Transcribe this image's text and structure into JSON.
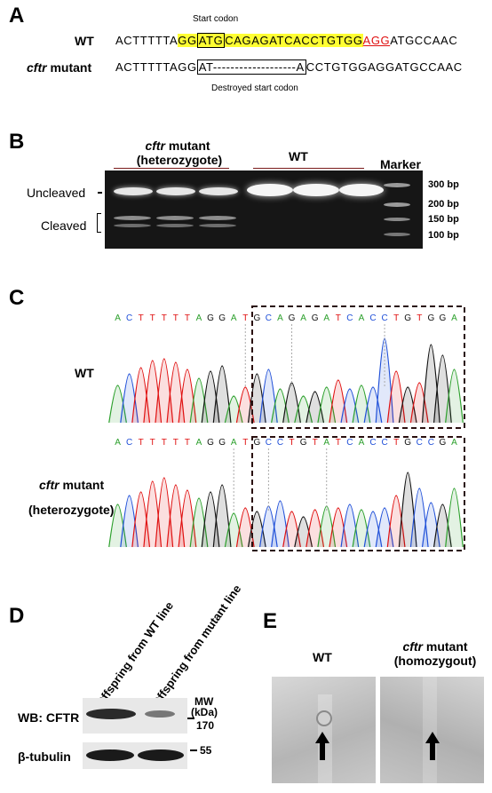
{
  "panels": {
    "A": "A",
    "B": "B",
    "C": "C",
    "D": "D",
    "E": "E"
  },
  "panelA": {
    "start_codon_label": "Start codon",
    "destroyed_label": "Destroyed start codon",
    "wt_label": "WT",
    "mutant_label_italic": "cftr",
    "mutant_label_rest": " mutant",
    "wt_seq": {
      "pre": "ACTTTTTA",
      "hl1": "GG",
      "box": "ATG",
      "hl2": "CAGAGATCACCTGTGG",
      "red": "AGG",
      "post": "ATGCCAAC"
    },
    "mut_seq": {
      "pre": "ACTTTTTAGG",
      "box": "AT-------------------A",
      "post": "CCTGTGGAGGATGCCAAC"
    }
  },
  "panelB": {
    "group1_italic": "cftr",
    "group1_rest": " mutant",
    "group1_sub": "(heterozygote)",
    "group2": "WT",
    "marker": "Marker",
    "uncleaved": "Uncleaved",
    "cleaved": "Cleaved",
    "sizes": [
      "300 bp",
      "200 bp",
      "150 bp",
      "100 bp"
    ]
  },
  "panelC": {
    "wt_label": "WT",
    "mut_label_italic": "cftr",
    "mut_label_rest": " mutant",
    "mut_label_sub": "(heterozygote)",
    "wt_bases": "ACTTTTTAGGATGCAGAGATCACCTGTGGA",
    "mut_bases": "ACTTTTTAGGATGCCTGTATCACCTGCCGA"
  },
  "panelD": {
    "lane1": "Offspring from WT line",
    "lane2": "Offspring from mutant line",
    "mw": "MW",
    "kda": "(kDa)",
    "row1": "WB: CFTR",
    "row2": "β-tubulin",
    "mw1": "170",
    "mw2": "55"
  },
  "panelE": {
    "wt": "WT",
    "mut_italic": "cftr",
    "mut_rest": " mutant",
    "mut_sub": "(homozygout)"
  },
  "colors": {
    "A": "#2ca02c",
    "C": "#1f4fd8",
    "G": "#111111",
    "T": "#e01010",
    "highlight": "#ffff33",
    "accent_red": "#e01010",
    "divider": "#7a1a1a"
  }
}
